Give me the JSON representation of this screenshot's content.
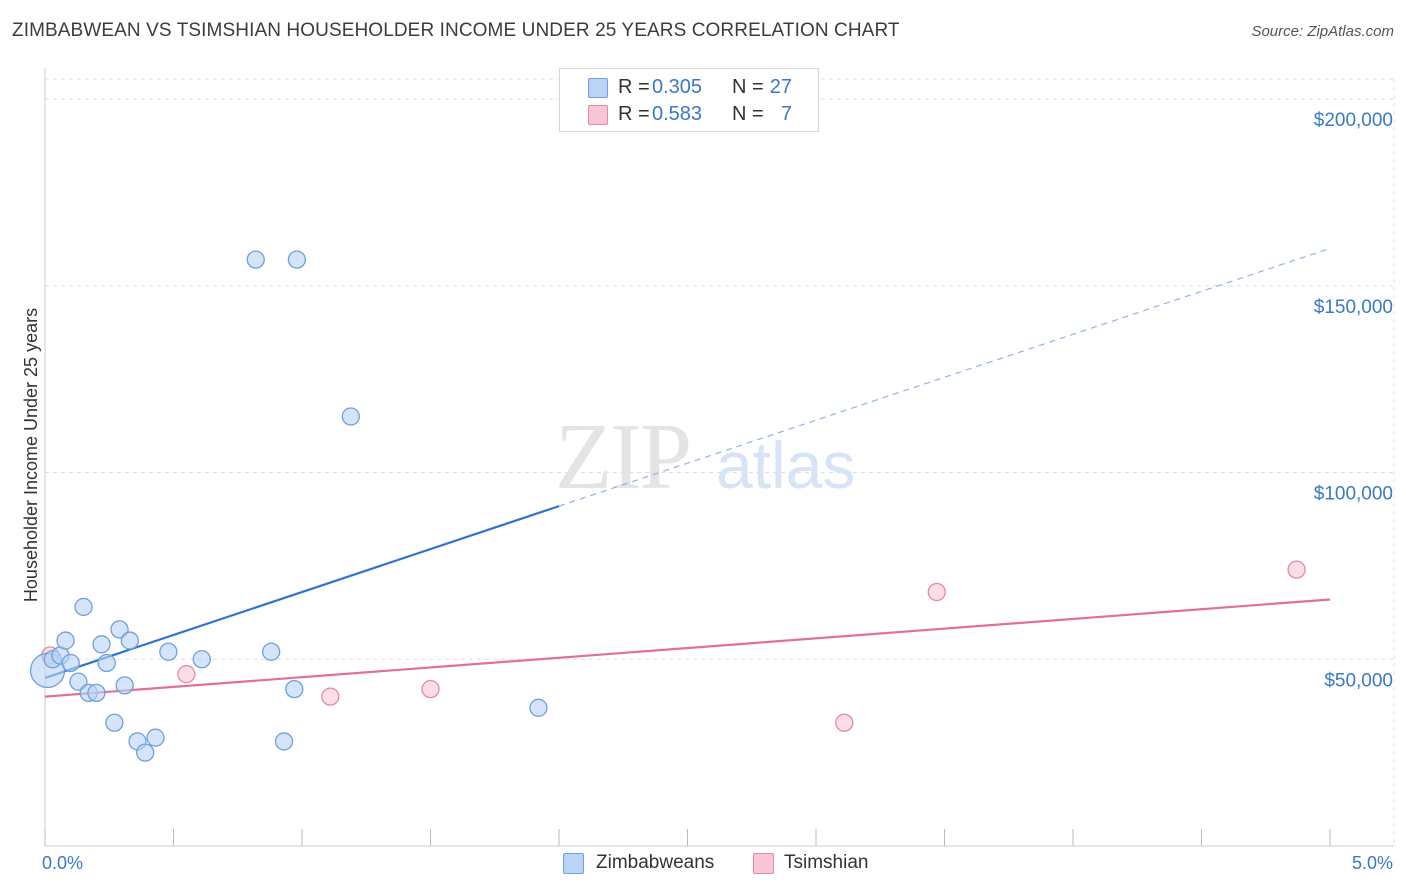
{
  "header": {
    "title": "ZIMBABWEAN VS TSIMSHIAN HOUSEHOLDER INCOME UNDER 25 YEARS CORRELATION CHART",
    "source": "Source: ZipAtlas.com"
  },
  "watermark": {
    "zip": "ZIP",
    "atlas": "atlas"
  },
  "legend": {
    "r_label": "R =",
    "n_label": "N =",
    "rows": [
      {
        "r": "0.305",
        "n": "27",
        "color": "#b9d4f5",
        "border": "#6fa0dc"
      },
      {
        "r": "0.583",
        "n": "7",
        "color": "#f8c6d4",
        "border": "#e58aa6"
      }
    ]
  },
  "bottom_legend": {
    "items": [
      {
        "label": "Zimbabweans",
        "color": "#b9d4f5",
        "border": "#6fa0dc"
      },
      {
        "label": "Tsimshian",
        "color": "#f8c6d4",
        "border": "#e58aa6"
      }
    ]
  },
  "chart_data": {
    "type": "scatter",
    "title": "ZIMBABWEAN VS TSIMSHIAN HOUSEHOLDER INCOME UNDER 25 YEARS CORRELATION CHART",
    "xlabel": "",
    "ylabel": "Householder Income Under 25 years",
    "xlim": [
      0,
      5
    ],
    "ylim": [
      0,
      200000
    ],
    "x_ticks": [
      {
        "value": 0,
        "label": "0.0%"
      },
      {
        "value": 5,
        "label": "5.0%"
      }
    ],
    "y_ticks": [
      {
        "value": 50000,
        "label": "$50,000"
      },
      {
        "value": 100000,
        "label": "$100,000"
      },
      {
        "value": 150000,
        "label": "$150,000"
      },
      {
        "value": 200000,
        "label": "$200,000"
      }
    ],
    "grid": true,
    "legend_position": "top-center",
    "series": [
      {
        "name": "Zimbabweans",
        "color": "#6fa0dc",
        "fill": "#b9d4f5",
        "points": [
          [
            0.01,
            47000
          ],
          [
            0.03,
            50000
          ],
          [
            0.06,
            51000
          ],
          [
            0.08,
            55000
          ],
          [
            0.1,
            49000
          ],
          [
            0.13,
            44000
          ],
          [
            0.15,
            64000
          ],
          [
            0.17,
            41000
          ],
          [
            0.2,
            41000
          ],
          [
            0.22,
            54000
          ],
          [
            0.24,
            49000
          ],
          [
            0.27,
            33000
          ],
          [
            0.29,
            58000
          ],
          [
            0.31,
            43000
          ],
          [
            0.33,
            55000
          ],
          [
            0.36,
            28000
          ],
          [
            0.39,
            25000
          ],
          [
            0.43,
            29000
          ],
          [
            0.48,
            52000
          ],
          [
            0.61,
            50000
          ],
          [
            0.82,
            157000
          ],
          [
            0.88,
            52000
          ],
          [
            0.93,
            28000
          ],
          [
            0.97,
            42000
          ],
          [
            0.98,
            157000
          ],
          [
            1.19,
            115000
          ],
          [
            1.92,
            37000
          ]
        ],
        "trend": {
          "x0": 0,
          "y0": 45000,
          "x1": 2.0,
          "y1": 91000,
          "x_dash_end": 5.0,
          "y_dash_end": 160000
        }
      },
      {
        "name": "Tsimshian",
        "color": "#e58aa6",
        "fill": "#f8c6d4",
        "points": [
          [
            0.02,
            51000
          ],
          [
            0.55,
            46000
          ],
          [
            1.11,
            40000
          ],
          [
            1.5,
            42000
          ],
          [
            3.11,
            33000
          ],
          [
            3.47,
            68000
          ],
          [
            4.87,
            74000
          ]
        ],
        "trend": {
          "x0": 0,
          "y0": 40000,
          "x1": 5.0,
          "y1": 66000
        }
      }
    ]
  }
}
